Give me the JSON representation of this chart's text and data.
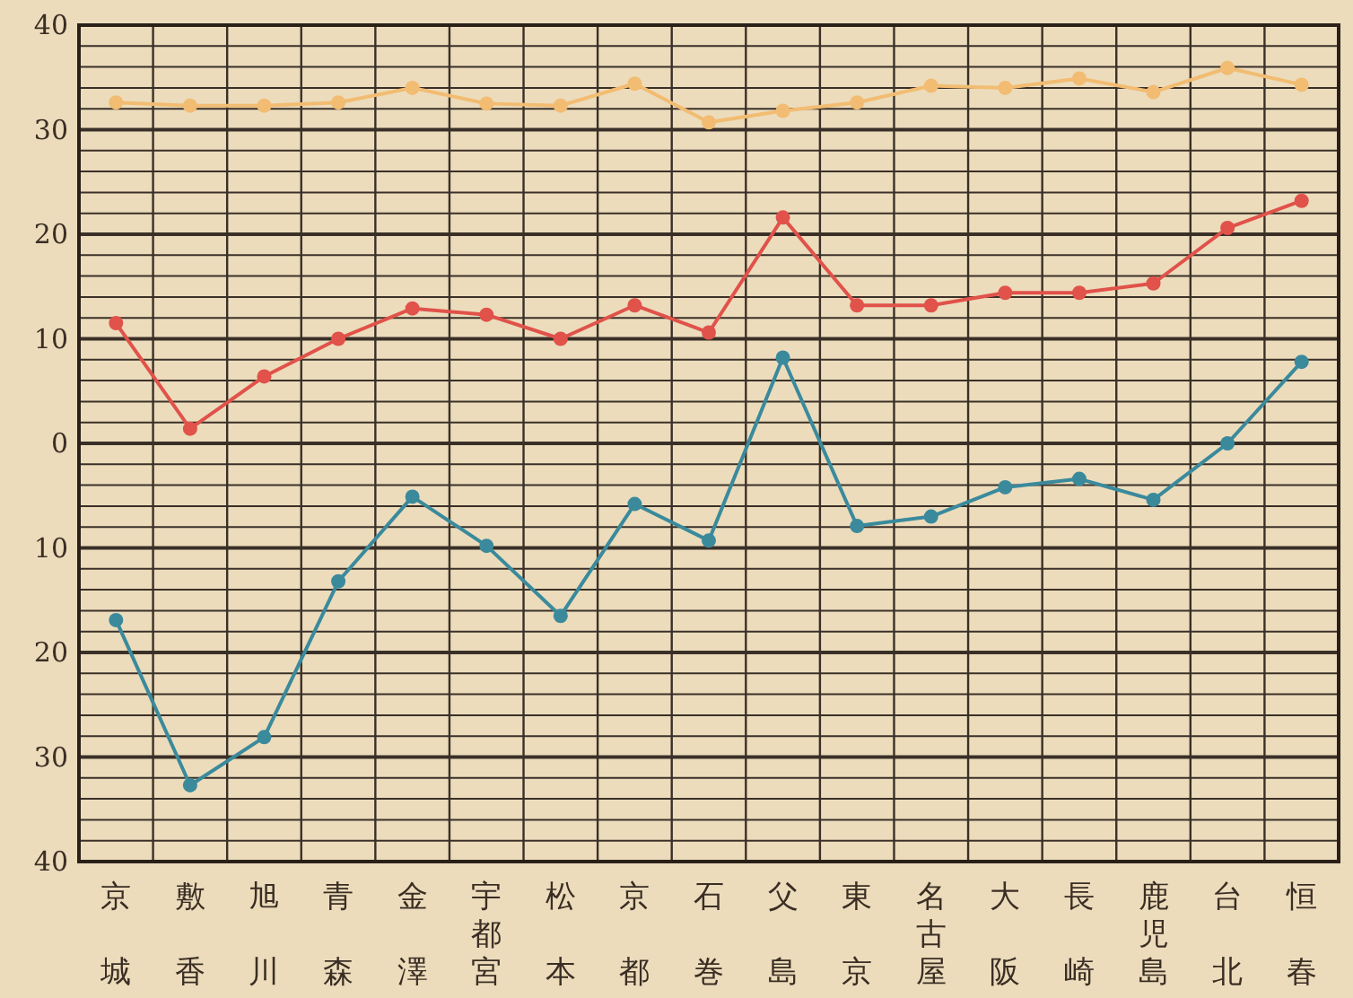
{
  "chart_data": {
    "type": "line",
    "categories": [
      "京城",
      "敷香",
      "旭川",
      "青森",
      "金澤",
      "宇都宮",
      "松本",
      "京都",
      "石巻",
      "父島",
      "東京",
      "名古屋",
      "大阪",
      "長崎",
      "鹿児島",
      "台北",
      "恒春"
    ],
    "series": [
      {
        "color": "#f2bc72",
        "values": [
          32.6,
          32.3,
          32.3,
          32.6,
          34.0,
          32.5,
          32.3,
          34.4,
          30.7,
          31.8,
          32.6,
          34.2,
          34.0,
          34.9,
          33.6,
          35.9,
          34.3
        ]
      },
      {
        "color": "#e0524a",
        "values": [
          11.5,
          1.4,
          6.4,
          10.0,
          12.9,
          12.3,
          10.0,
          13.2,
          10.6,
          21.6,
          13.2,
          13.2,
          14.4,
          14.4,
          15.3,
          20.6,
          23.2
        ]
      },
      {
        "color": "#3a8a9c",
        "values": [
          -16.9,
          -32.7,
          -28.1,
          -13.2,
          -5.1,
          -9.8,
          -16.5,
          -5.8,
          -9.3,
          8.2,
          -7.9,
          -7.0,
          -4.2,
          -3.4,
          -5.4,
          0.0,
          7.8
        ]
      }
    ],
    "ylim": [
      -40,
      40
    ],
    "yticks": [
      {
        "value": -40,
        "label": "40"
      },
      {
        "value": -30,
        "label": "30"
      },
      {
        "value": -20,
        "label": "20"
      },
      {
        "value": -10,
        "label": "10"
      },
      0,
      10,
      20,
      30,
      40
    ],
    "grid": true,
    "marker": "circle",
    "line_style": "solid"
  }
}
